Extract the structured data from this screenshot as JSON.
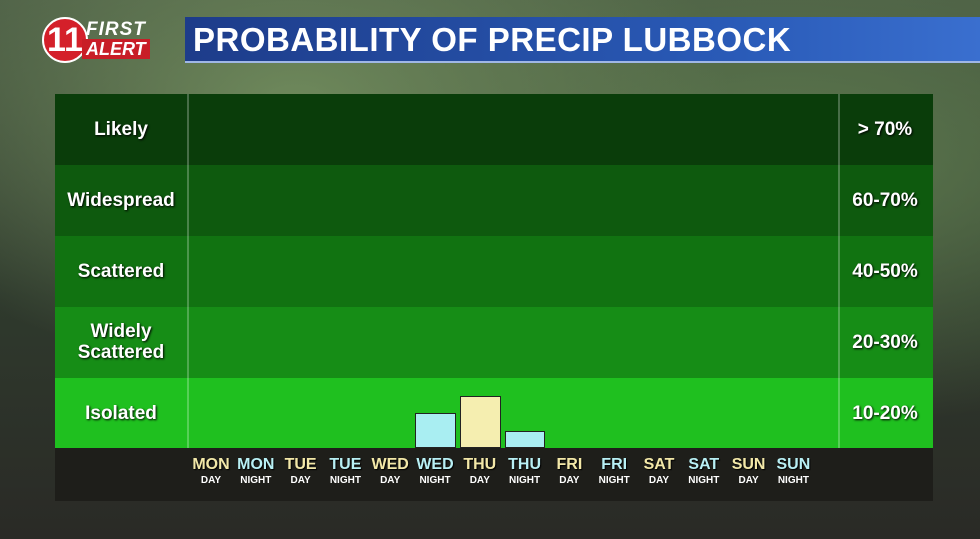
{
  "logo": {
    "number": "11",
    "line1": "FIRST",
    "line2": "ALERT"
  },
  "title": "PROBABILITY OF PRECIP LUBBOCK",
  "colors": {
    "bands": [
      "#0a3d0a",
      "#0e5a0e",
      "#117311",
      "#168d16",
      "#1fc01f"
    ],
    "day_bar": "#f5eeb0",
    "night_bar": "#a9eef2",
    "day_label": "#f3e8a8",
    "night_label": "#b8f0f5"
  },
  "chart_data": {
    "type": "bar",
    "title": "PROBABILITY OF PRECIP LUBBOCK",
    "categories": [
      {
        "day": "MON",
        "period": "DAY"
      },
      {
        "day": "MON",
        "period": "NIGHT"
      },
      {
        "day": "TUE",
        "period": "DAY"
      },
      {
        "day": "TUE",
        "period": "NIGHT"
      },
      {
        "day": "WED",
        "period": "DAY"
      },
      {
        "day": "WED",
        "period": "NIGHT"
      },
      {
        "day": "THU",
        "period": "DAY"
      },
      {
        "day": "THU",
        "period": "NIGHT"
      },
      {
        "day": "FRI",
        "period": "DAY"
      },
      {
        "day": "FRI",
        "period": "NIGHT"
      },
      {
        "day": "SAT",
        "period": "DAY"
      },
      {
        "day": "SAT",
        "period": "NIGHT"
      },
      {
        "day": "SUN",
        "period": "DAY"
      },
      {
        "day": "SUN",
        "period": "NIGHT"
      }
    ],
    "values": [
      0,
      0,
      0,
      0,
      0,
      10,
      15,
      5,
      0,
      0,
      0,
      0,
      0,
      0
    ],
    "categories_bands": [
      {
        "label": "Likely",
        "range": "> 70%"
      },
      {
        "label": "Widespread",
        "range": "60-70%"
      },
      {
        "label": "Scattered",
        "range": "40-50%"
      },
      {
        "label": "Widely Scattered",
        "range": "20-30%"
      },
      {
        "label": "Isolated",
        "range": "10-20%"
      }
    ],
    "ylim": [
      0,
      100
    ],
    "grid": false,
    "legend": "none"
  }
}
